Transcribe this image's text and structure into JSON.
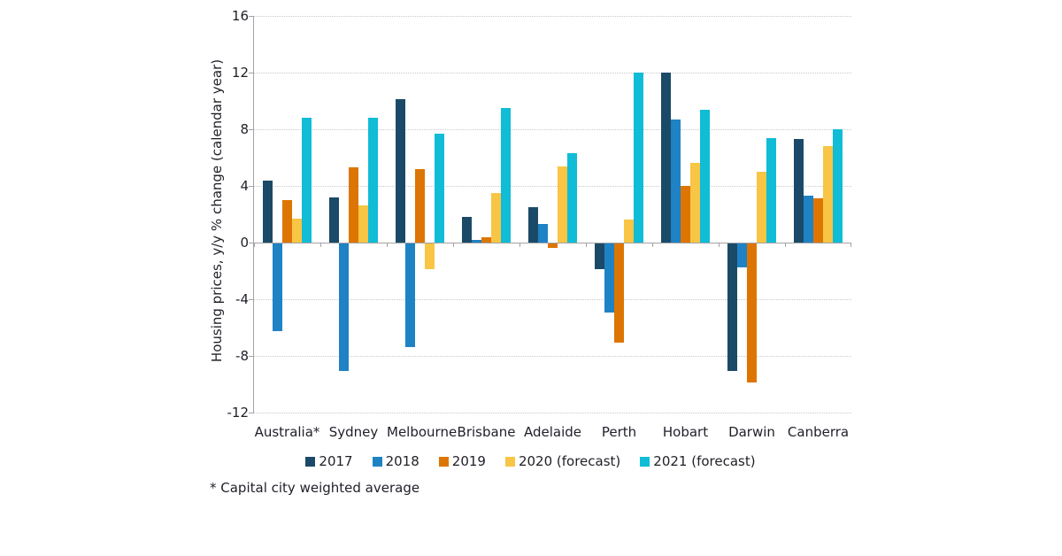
{
  "chart_data": {
    "type": "bar",
    "title": "",
    "xlabel": "",
    "ylabel": "Housing prices, y/y % change (calendar year)",
    "ylim": [
      -12,
      16
    ],
    "yticks": [
      16,
      12,
      8,
      4,
      0,
      -4,
      -8,
      -12
    ],
    "grid": "horizontal dotted",
    "legend_position": "bottom",
    "categories": [
      "Australia*",
      "Sydney",
      "Melbourne",
      "Brisbane",
      "Adelaide",
      "Perth",
      "Hobart",
      "Darwin",
      "Canberra"
    ],
    "series": [
      {
        "name": "2017",
        "color": "#1b4a68",
        "values": [
          4.4,
          3.2,
          10.1,
          1.8,
          2.5,
          -1.8,
          12.0,
          -9.0,
          7.3
        ]
      },
      {
        "name": "2018",
        "color": "#1e82c4",
        "values": [
          -6.2,
          -9.0,
          -7.3,
          0.2,
          1.3,
          -4.9,
          8.7,
          -1.7,
          3.3
        ]
      },
      {
        "name": "2019",
        "color": "#dd7502",
        "values": [
          3.0,
          5.3,
          5.2,
          0.4,
          -0.3,
          -7.0,
          4.0,
          -9.8,
          3.1
        ]
      },
      {
        "name": "2020 (forecast)",
        "color": "#f8c544",
        "values": [
          1.7,
          2.6,
          -1.8,
          3.5,
          5.4,
          1.6,
          5.6,
          5.0,
          6.8
        ]
      },
      {
        "name": "2021 (forecast)",
        "color": "#10bcd6",
        "values": [
          8.8,
          8.8,
          7.7,
          9.5,
          6.3,
          12.0,
          9.4,
          7.4,
          8.0
        ]
      }
    ],
    "footnote": "* Capital city weighted average",
    "colors": {
      "axis": "#a3a3a3",
      "gridline": "#c9c9c9",
      "text": "#1f1f28"
    }
  }
}
